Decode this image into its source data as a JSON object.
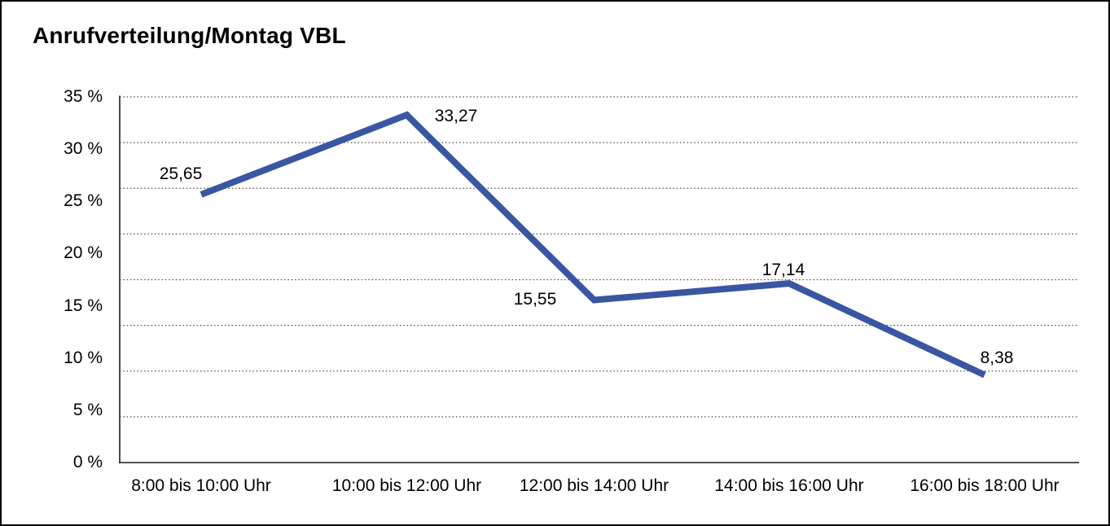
{
  "chart_data": {
    "type": "line",
    "title": "Anrufverteilung/Montag VBL",
    "categories": [
      "8:00 bis 10:00 Uhr",
      "10:00 bis 12:00 Uhr",
      "12:00 bis 14:00 Uhr",
      "14:00 bis 16:00 Uhr",
      "16:00 bis 18:00 Uhr"
    ],
    "values": [
      25.65,
      33.27,
      15.55,
      17.14,
      8.38
    ],
    "point_labels": [
      "25,65",
      "33,27",
      "15,55",
      "17,14",
      "8,38"
    ],
    "y_tick_labels": [
      "35 %",
      "30 %",
      "25 %",
      "20 %",
      "15 %",
      "10 %",
      "5 %",
      "0 %"
    ],
    "y_tick_values": [
      35,
      30,
      25,
      20,
      15,
      10,
      5,
      0
    ],
    "ylim": [
      0,
      35
    ],
    "xlabel": "",
    "ylabel": "",
    "grid": "horizontal-dotted",
    "legend": "none",
    "line_color": "#3A56A3",
    "axis_color": "#2b2b2b",
    "gridline_color": "#4a4a4a",
    "text_color": "#000000"
  }
}
